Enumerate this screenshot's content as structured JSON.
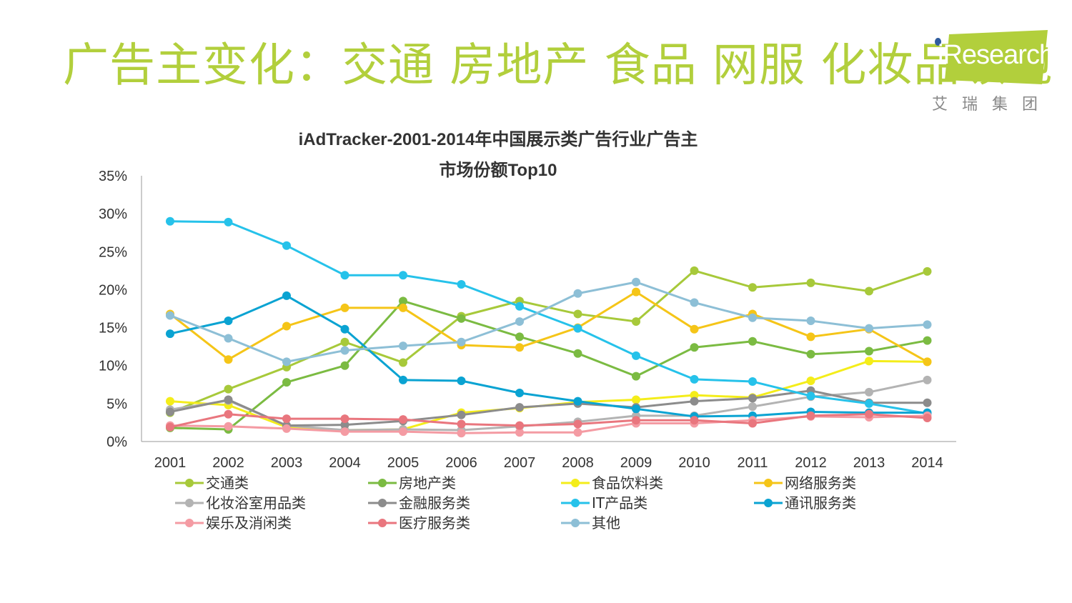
{
  "page": {
    "headline": "广告主变化：交通 房地产 食品 网服 化妆品领跑",
    "logo_text": "iResearch",
    "logo_sub": "艾瑞集团",
    "brand_color": "#b2cf3c"
  },
  "chart_data": {
    "type": "line",
    "title_line1": "iAdTracker-2001-2014年中国展示类广告行业广告主",
    "title_line2": "市场份额Top10",
    "xlabel": "",
    "ylabel": "",
    "ylim": [
      0,
      35
    ],
    "yticks": [
      0,
      5,
      10,
      15,
      20,
      25,
      30,
      35
    ],
    "ytick_suffix": "%",
    "grid": false,
    "legend_position": "bottom",
    "categories": [
      "2001",
      "2002",
      "2003",
      "2004",
      "2005",
      "2006",
      "2007",
      "2008",
      "2009",
      "2010",
      "2011",
      "2012",
      "2013",
      "2014"
    ],
    "series": [
      {
        "name": "交通类",
        "color": "#a7c93a",
        "values": [
          3.8,
          6.9,
          9.8,
          13.1,
          10.4,
          16.5,
          18.5,
          16.8,
          15.8,
          22.5,
          20.3,
          20.9,
          19.8,
          22.4
        ]
      },
      {
        "name": "房地产类",
        "color": "#7bbb42",
        "values": [
          1.8,
          1.6,
          7.8,
          10.0,
          18.5,
          16.2,
          13.8,
          11.6,
          8.6,
          12.4,
          13.2,
          11.5,
          11.9,
          13.3
        ]
      },
      {
        "name": "食品饮料类",
        "color": "#f4ed1a",
        "values": [
          5.3,
          4.8,
          1.9,
          1.5,
          1.6,
          3.8,
          4.4,
          5.2,
          5.5,
          6.1,
          5.8,
          8.0,
          10.6,
          10.5
        ]
      },
      {
        "name": "网络服务类",
        "color": "#f5c518",
        "values": [
          16.8,
          10.8,
          15.2,
          17.6,
          17.6,
          12.7,
          12.4,
          15.0,
          19.7,
          14.8,
          16.8,
          13.8,
          14.8,
          10.5
        ]
      },
      {
        "name": "化妆浴室用品类",
        "color": "#b3b3b3",
        "values": [
          4.2,
          5.4,
          2.1,
          1.5,
          1.6,
          1.5,
          2.0,
          2.6,
          3.4,
          3.4,
          4.6,
          5.9,
          6.5,
          8.1
        ]
      },
      {
        "name": "金融服务类",
        "color": "#8c8c8c",
        "values": [
          3.9,
          5.5,
          2.1,
          2.2,
          2.7,
          3.5,
          4.5,
          5.0,
          4.5,
          5.3,
          5.7,
          6.7,
          5.1,
          5.1
        ]
      },
      {
        "name": "IT产品类",
        "color": "#26c2ea",
        "values": [
          29.0,
          28.9,
          25.8,
          21.9,
          21.9,
          20.7,
          17.8,
          14.9,
          11.3,
          8.2,
          7.9,
          6.0,
          5.0,
          3.7
        ]
      },
      {
        "name": "通讯服务类",
        "color": "#0aa3d2",
        "values": [
          14.2,
          15.9,
          19.2,
          14.8,
          8.1,
          8.0,
          6.4,
          5.3,
          4.3,
          3.3,
          3.4,
          3.9,
          3.8,
          3.8
        ]
      },
      {
        "name": "娱乐及消闲类",
        "color": "#f49ba3",
        "values": [
          2.1,
          2.0,
          1.7,
          1.3,
          1.3,
          1.1,
          1.2,
          1.2,
          2.4,
          2.4,
          2.8,
          3.3,
          3.2,
          3.4
        ]
      },
      {
        "name": "医疗服务类",
        "color": "#e9767e",
        "values": [
          1.9,
          3.6,
          3.0,
          3.0,
          2.9,
          2.3,
          2.1,
          2.3,
          2.8,
          2.8,
          2.4,
          3.4,
          3.6,
          3.1
        ]
      },
      {
        "name": "其他",
        "color": "#8dbfd6",
        "values": [
          16.6,
          13.6,
          10.5,
          12.0,
          12.6,
          13.1,
          15.8,
          19.5,
          21.0,
          18.3,
          16.3,
          15.9,
          14.9,
          15.4
        ]
      }
    ]
  }
}
